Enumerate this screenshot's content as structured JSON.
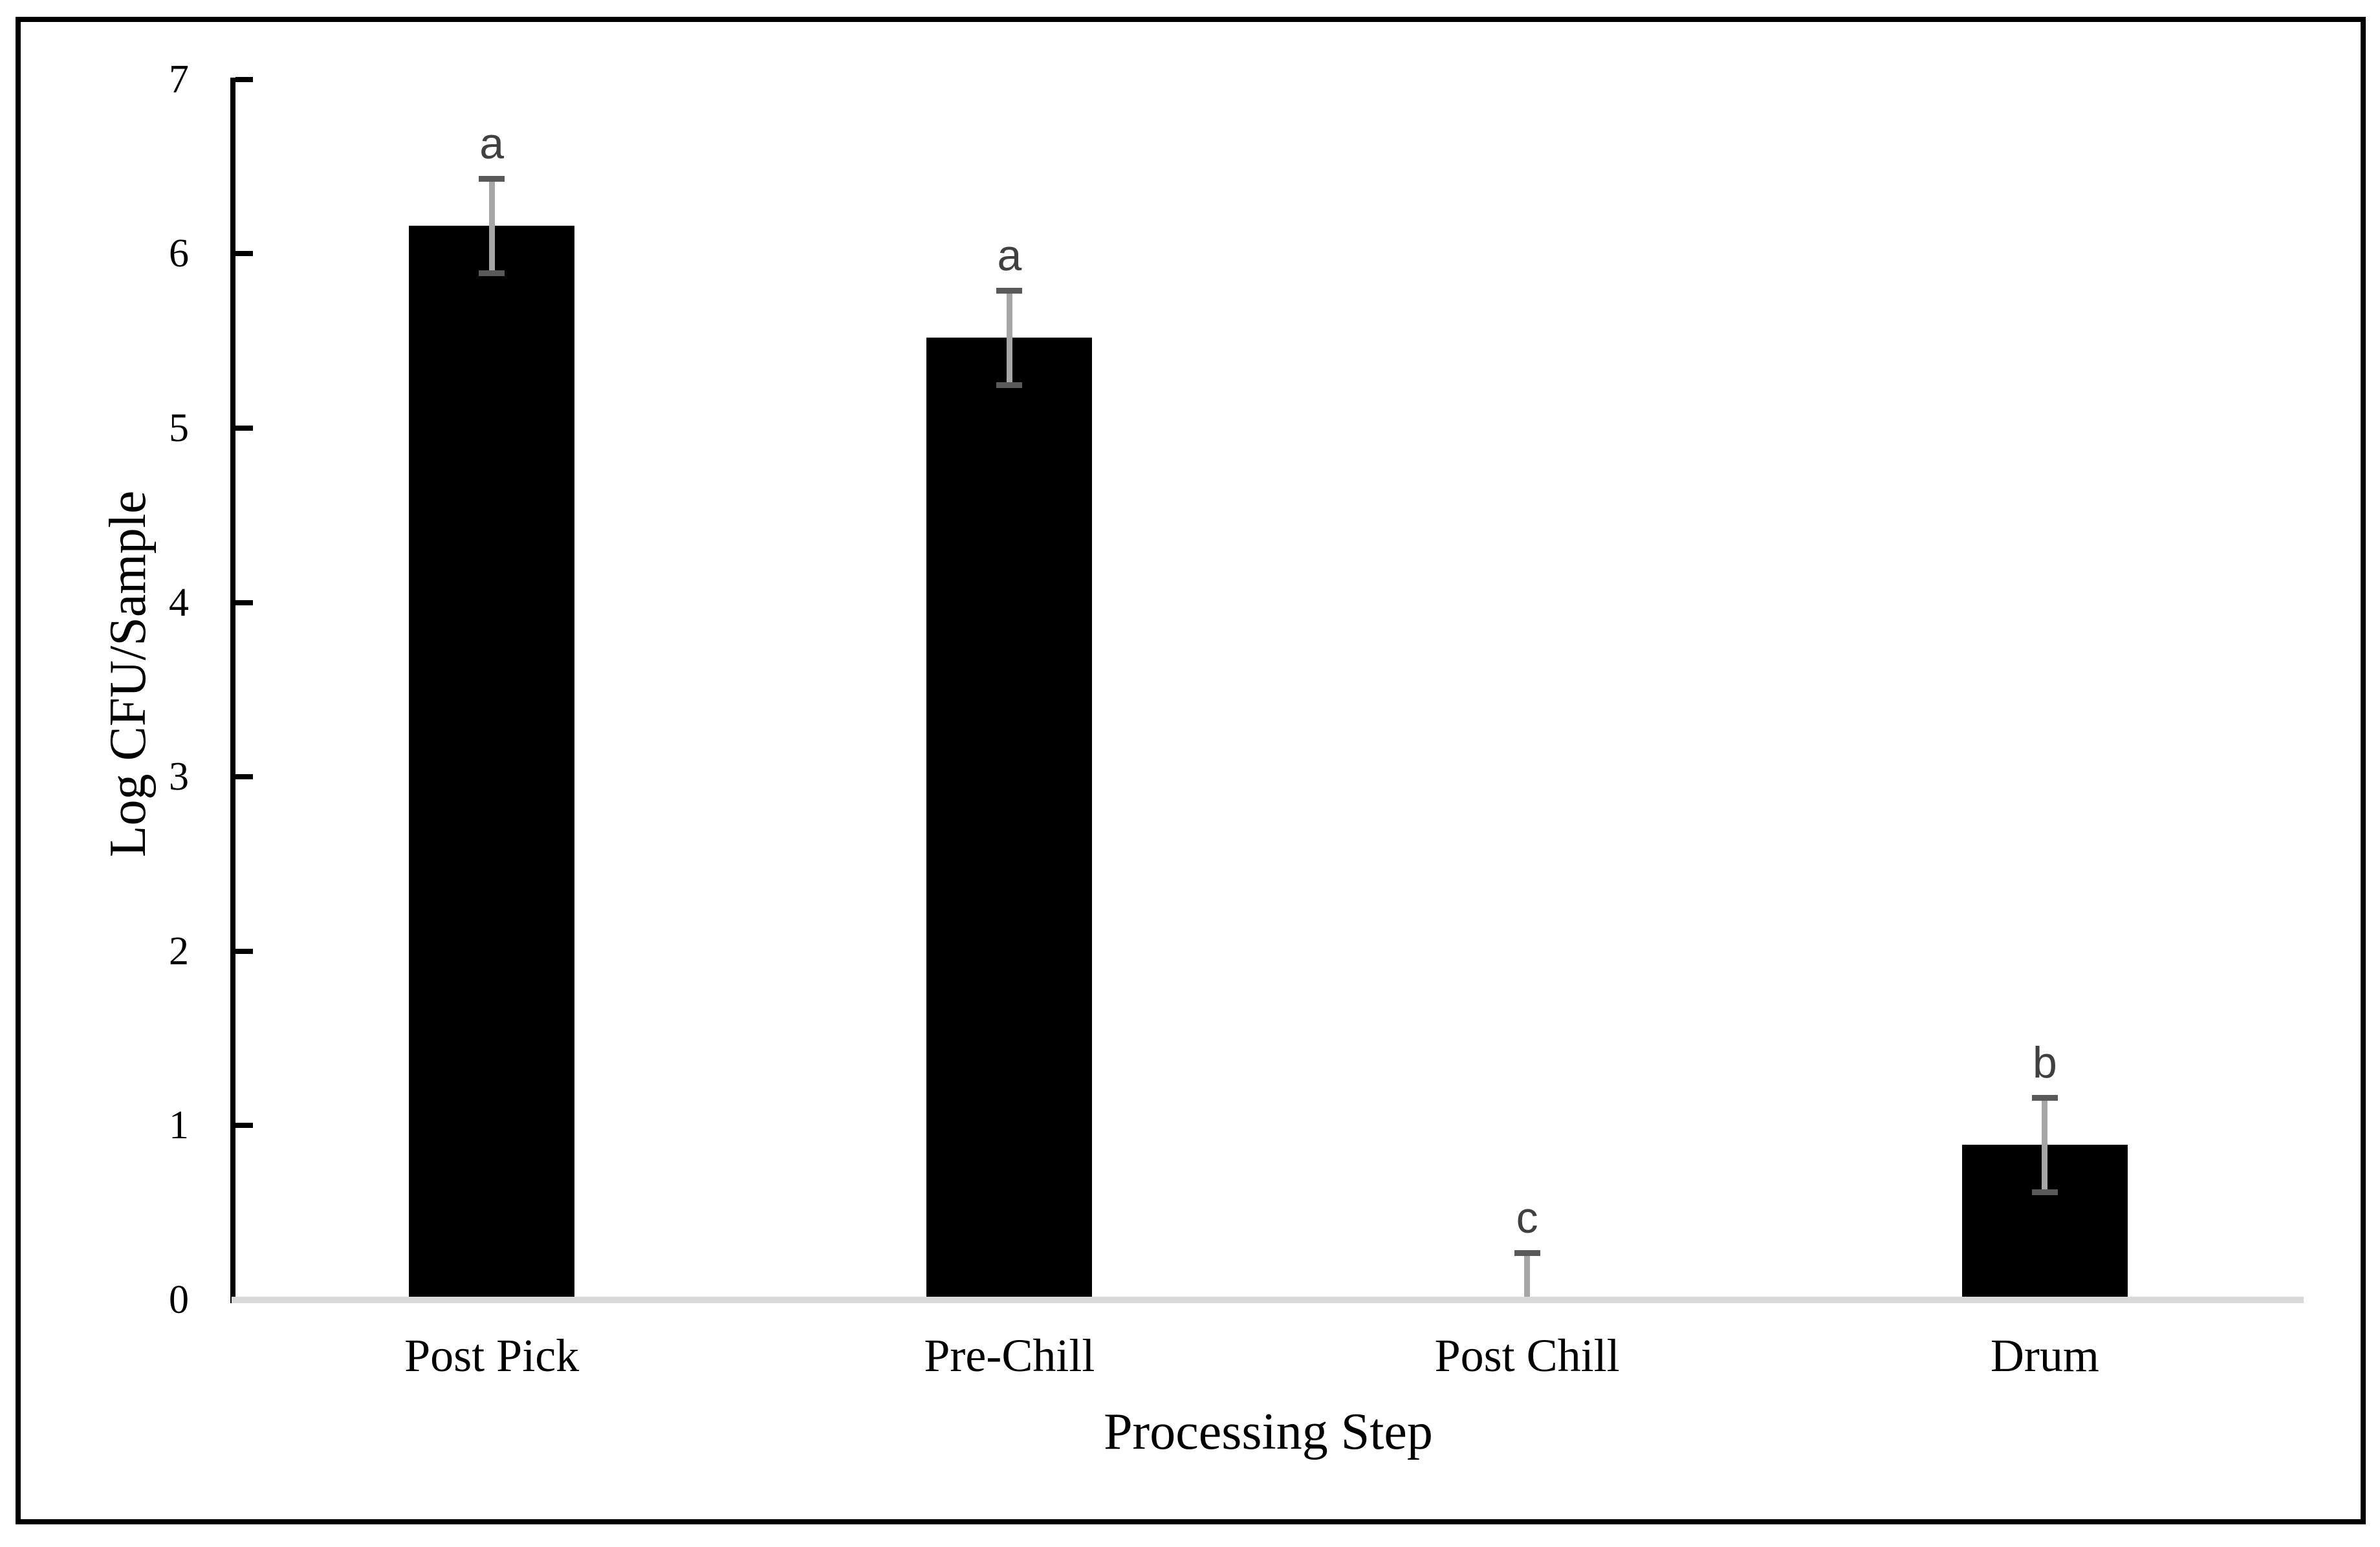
{
  "chart_data": {
    "type": "bar",
    "xlabel": "Processing Step",
    "ylabel": "Log CFU/Sample",
    "categories": [
      "Post Pick",
      "Pre-Chill",
      "Post Chill",
      "Drum"
    ],
    "values": [
      6.16,
      5.52,
      0,
      0.89
    ],
    "upper_errors": [
      0.27,
      0.27,
      0.27,
      0.27
    ],
    "lower_errors": [
      0.27,
      0.27,
      0,
      0.27
    ],
    "sig_letters": [
      "a",
      "a",
      "c",
      "b"
    ],
    "yticks": [
      0,
      1,
      2,
      3,
      4,
      5,
      6,
      7
    ],
    "ylim": [
      0,
      7
    ],
    "grid": false,
    "legend": null,
    "colors": {
      "bar": "#000000",
      "error_line": "#a6a6a6",
      "error_cap": "#595959",
      "sig_letter": "#404040",
      "baseline": "#d9d9d9",
      "axis": "#000000",
      "text": "#000000"
    }
  }
}
